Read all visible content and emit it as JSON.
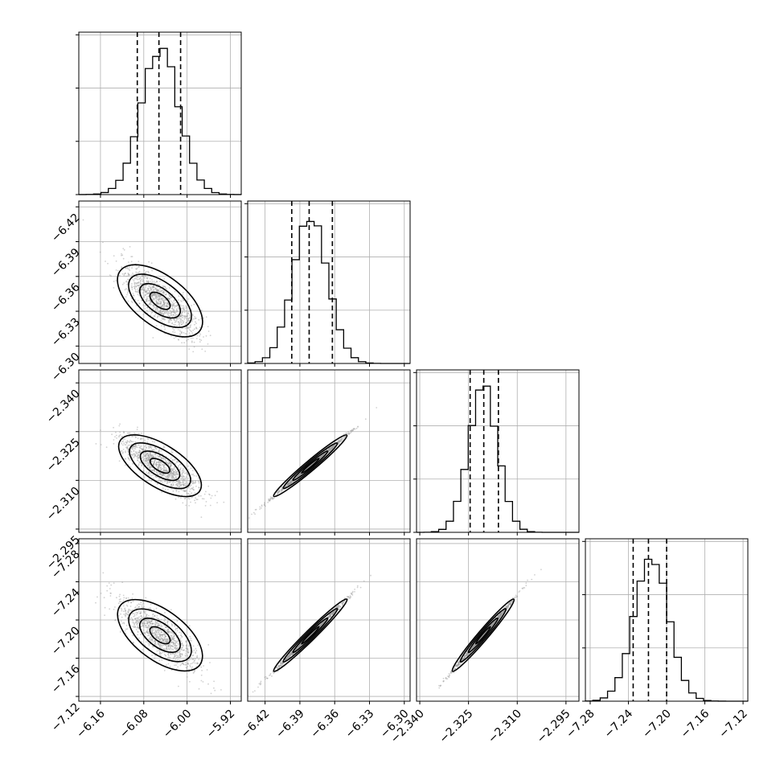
{
  "chart_data": {
    "type": "corner",
    "grid": true,
    "params": [
      {
        "range": [
          -6.2,
          -5.9
        ],
        "ticks": [
          -6.16,
          -6.08,
          -6.0,
          -5.92
        ],
        "tick_labels": [
          "−6.16",
          "−6.08",
          "−6.00",
          "−5.92"
        ],
        "quantiles": [
          -6.092,
          -6.052,
          -6.012
        ],
        "hist_peak": -6.05,
        "hist_sd": 0.035
      },
      {
        "range": [
          -6.435,
          -6.295
        ],
        "ticks": [
          -6.42,
          -6.39,
          -6.36,
          -6.33,
          -6.3
        ],
        "tick_labels": [
          "−6.42",
          "−6.39",
          "−6.36",
          "−6.33",
          "−6.30"
        ],
        "quantiles": [
          -6.397,
          -6.382,
          -6.362
        ],
        "hist_peak": -6.381,
        "hist_sd": 0.015
      },
      {
        "range": [
          -2.341,
          -2.291
        ],
        "ticks": [
          -2.34,
          -2.325,
          -2.31,
          -2.295
        ],
        "tick_labels": [
          "−2.340",
          "−2.325",
          "−2.310",
          "−2.295"
        ],
        "quantiles": [
          -2.3245,
          -2.3203,
          -2.3158
        ],
        "hist_peak": -2.3205,
        "hist_sd": 0.0045
      },
      {
        "range": [
          -7.285,
          -7.115
        ],
        "ticks": [
          -7.28,
          -7.24,
          -7.2,
          -7.16,
          -7.12
        ],
        "tick_labels": [
          "−7.28",
          "−7.24",
          "−7.20",
          "−7.16",
          "−7.12"
        ],
        "quantiles": [
          -7.235,
          -7.219,
          -7.2
        ],
        "hist_peak": -7.216,
        "hist_sd": 0.018
      }
    ],
    "y_tick_labels": {
      "1": [
        "−6.30",
        "−6.33",
        "−6.36",
        "−6.39",
        "−6.42"
      ],
      "2": [
        "−2.295",
        "−2.310",
        "−2.325",
        "−2.340"
      ],
      "3": [
        "−7.12",
        "−7.16",
        "−7.20",
        "−7.24",
        "−7.28"
      ]
    },
    "hist_ticks": 3
  }
}
